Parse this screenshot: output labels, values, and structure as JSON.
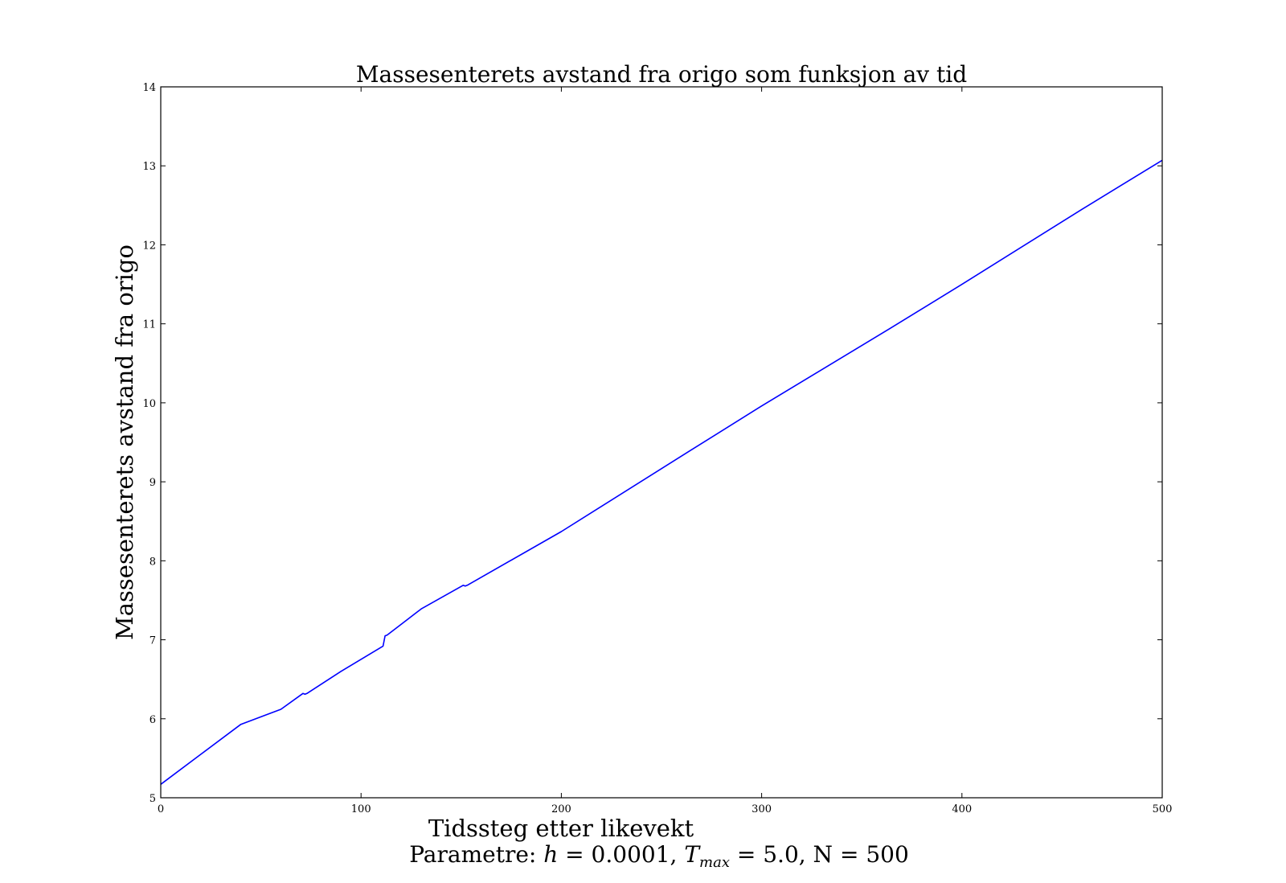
{
  "chart_data": {
    "type": "line",
    "title": "Massesenterets avstand fra origo som funksjon av tid",
    "xlabel": "Tidssteg etter likevekt",
    "ylabel": "Massesenterets avstand fra origo",
    "caption_prefix": "Parametre: ",
    "caption_h": "h",
    "caption_eq1": " = 0.0001, ",
    "caption_T": "T",
    "caption_sub": "max",
    "caption_eq2": " = 5.0, N = 500",
    "xlim": [
      0,
      500
    ],
    "ylim": [
      5,
      14
    ],
    "xticks": [
      0,
      100,
      200,
      300,
      400,
      500
    ],
    "yticks": [
      5,
      6,
      7,
      8,
      9,
      10,
      11,
      12,
      13,
      14
    ],
    "grid": false,
    "line_color": "#0000ff",
    "series": [
      {
        "x": [
          0,
          20,
          40,
          60,
          71,
          72,
          73,
          90,
          111,
          112,
          113,
          130,
          151,
          152,
          153,
          200,
          264,
          300,
          364,
          400,
          460,
          500
        ],
        "y": [
          5.17,
          5.55,
          5.93,
          6.12,
          6.32,
          6.31,
          6.32,
          6.6,
          6.92,
          7.05,
          7.06,
          7.39,
          7.69,
          7.68,
          7.69,
          8.37,
          9.39,
          9.96,
          10.94,
          11.5,
          12.45,
          13.07
        ]
      }
    ]
  }
}
